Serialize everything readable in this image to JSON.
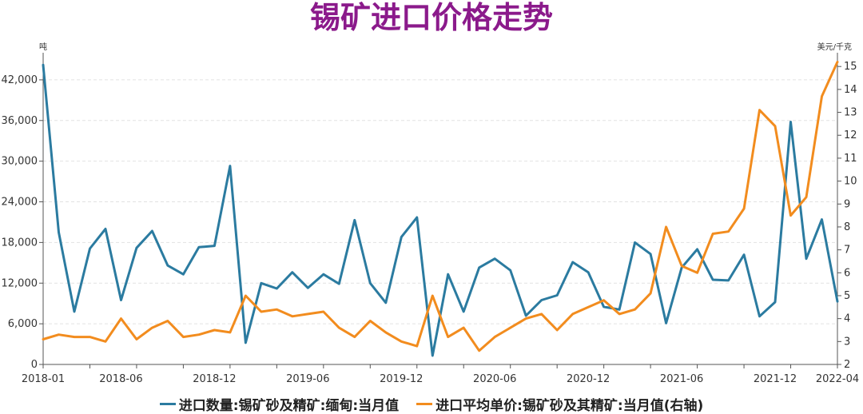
{
  "chart_data": {
    "type": "line",
    "title": "锡矿进口价格走势",
    "left_unit": "吨",
    "right_unit": "美元/千克",
    "x": [
      "2018-01",
      "2018-02",
      "2018-03",
      "2018-04",
      "2018-05",
      "2018-06",
      "2018-07",
      "2018-08",
      "2018-09",
      "2018-10",
      "2018-11",
      "2018-12",
      "2019-01",
      "2019-02",
      "2019-03",
      "2019-04",
      "2019-05",
      "2019-06",
      "2019-07",
      "2019-08",
      "2019-09",
      "2019-10",
      "2019-11",
      "2019-12",
      "2020-01",
      "2020-02",
      "2020-03",
      "2020-04",
      "2020-05",
      "2020-06",
      "2020-07",
      "2020-08",
      "2020-09",
      "2020-10",
      "2020-11",
      "2020-12",
      "2021-01",
      "2021-02",
      "2021-03",
      "2021-04",
      "2021-05",
      "2021-06",
      "2021-07",
      "2021-08",
      "2021-09",
      "2021-10",
      "2021-11",
      "2021-12",
      "2022-01",
      "2022-02",
      "2022-03",
      "2022-04"
    ],
    "x_tick_labels": [
      "2018-01",
      "2018-06",
      "2018-12",
      "2019-06",
      "2019-12",
      "2020-06",
      "2020-12",
      "2021-06",
      "2021-12",
      "2022-04"
    ],
    "y_left_ticks": [
      "0",
      "6,000",
      "12,000",
      "18,000",
      "24,000",
      "30,000",
      "36,000",
      "42,000"
    ],
    "ylim_left": [
      0,
      46000
    ],
    "y_right_ticks": [
      "2",
      "3",
      "4",
      "5",
      "6",
      "7",
      "8",
      "9",
      "10",
      "11",
      "12",
      "13",
      "14",
      "15"
    ],
    "ylim_right": [
      2,
      15.6
    ],
    "grid": true,
    "legend_position": "bottom",
    "series": [
      {
        "name": "进口数量:锡矿砂及精矿:缅甸:当月值",
        "axis": "left",
        "color": "#2B7BA0",
        "values": [
          44200,
          19500,
          7800,
          17100,
          20000,
          9500,
          17200,
          19700,
          14600,
          13300,
          17300,
          17500,
          29300,
          3200,
          12000,
          11200,
          13600,
          11300,
          13300,
          11900,
          21300,
          12000,
          9100,
          18800,
          21700,
          1300,
          13300,
          7800,
          14300,
          15600,
          13900,
          7200,
          9500,
          10200,
          15100,
          13600,
          8500,
          8100,
          18000,
          16300,
          6100,
          14300,
          17000,
          12500,
          12400,
          16200,
          7100,
          9200,
          35800,
          15600,
          21400,
          9300
        ]
      },
      {
        "name": "进口平均单价:锡矿砂及其精矿:当月值(右轴)",
        "axis": "right",
        "color": "#F28C1E",
        "values": [
          3.1,
          3.3,
          3.2,
          3.2,
          3.0,
          4.0,
          3.1,
          3.6,
          3.9,
          3.2,
          3.3,
          3.5,
          3.4,
          5.0,
          4.3,
          4.4,
          4.1,
          4.2,
          4.3,
          3.6,
          3.2,
          3.9,
          3.4,
          3.0,
          2.8,
          5.0,
          3.2,
          3.6,
          2.6,
          3.2,
          3.6,
          4.0,
          4.2,
          3.5,
          4.2,
          4.5,
          4.8,
          4.2,
          4.4,
          5.1,
          8.0,
          6.3,
          6.0,
          7.7,
          7.8,
          8.8,
          13.1,
          12.4,
          8.5,
          9.3,
          13.7,
          15.2
        ]
      }
    ]
  }
}
